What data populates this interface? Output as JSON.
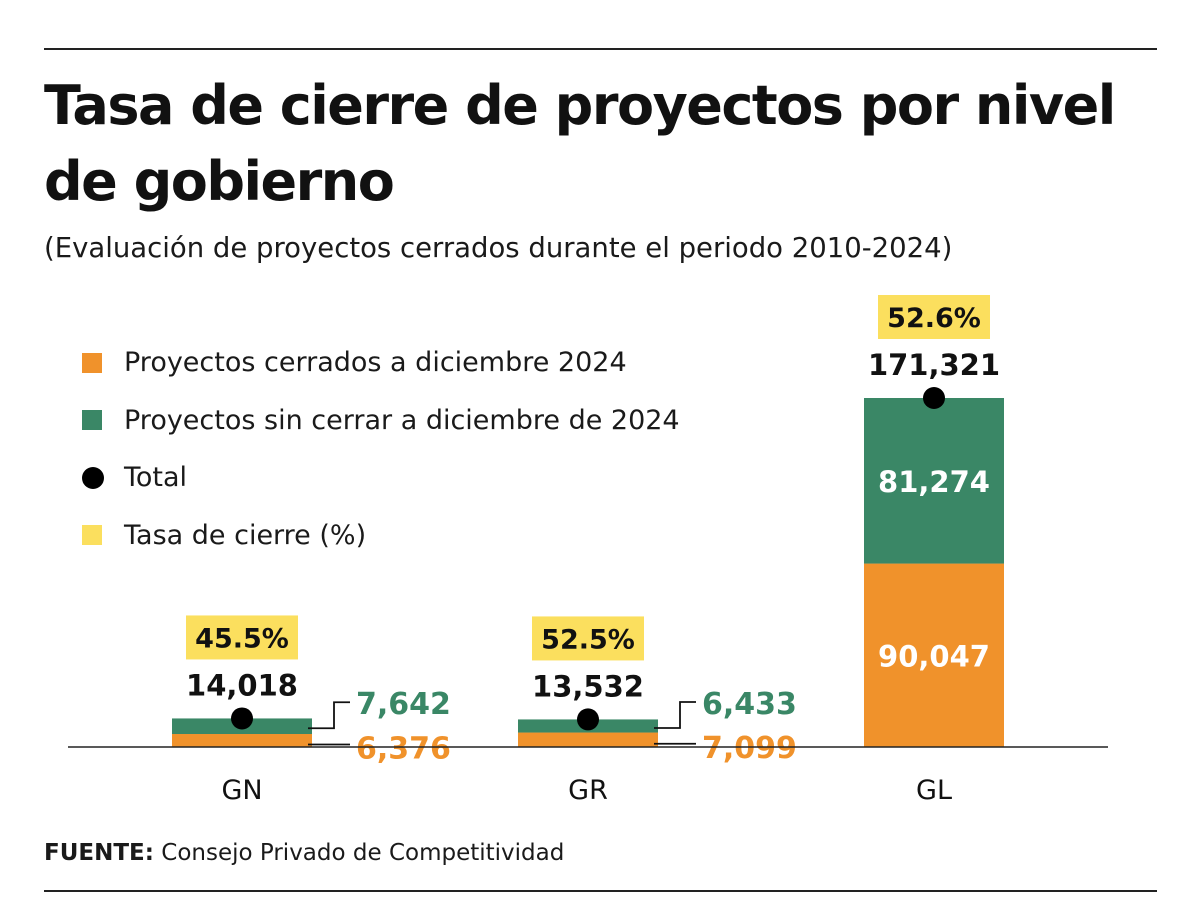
{
  "title": "Tasa de cierre de proyectos por nivel de gobierno",
  "subtitle": "(Evaluación de proyectos cerrados durante el periodo 2010-2024)",
  "source": {
    "label": "FUENTE:",
    "text": "Consejo Privado de Competitividad"
  },
  "colors": {
    "closed": "#F0922B",
    "open": "#3A8766",
    "total": "#000000",
    "rate": "#FBDF5E"
  },
  "legend": [
    {
      "key": "closed",
      "label": "Proyectos cerrados a diciembre 2024"
    },
    {
      "key": "open",
      "label": "Proyectos sin cerrar a diciembre de 2024"
    },
    {
      "key": "total",
      "label": "Total"
    },
    {
      "key": "rate",
      "label": "Tasa de cierre (%)"
    }
  ],
  "chart_data": {
    "type": "bar",
    "stacked": true,
    "categories": [
      "GN",
      "GR",
      "GL"
    ],
    "series": [
      {
        "name": "Proyectos cerrados a diciembre 2024",
        "values": [
          6376,
          7099,
          90047
        ],
        "labels": [
          "6,376",
          "7,099",
          "90,047"
        ]
      },
      {
        "name": "Proyectos sin cerrar a diciembre de 2024",
        "values": [
          7642,
          6433,
          81274
        ],
        "labels": [
          "7,642",
          "6,433",
          "81,274"
        ]
      }
    ],
    "totals": [
      14018,
      13532,
      171321
    ],
    "total_labels": [
      "14,018",
      "13,532",
      "171,321"
    ],
    "closure_rate_labels": [
      "45.5%",
      "52.5%",
      "52.6%"
    ],
    "ylim": [
      0,
      171321
    ],
    "grid": false,
    "legend_position": "top-left"
  }
}
